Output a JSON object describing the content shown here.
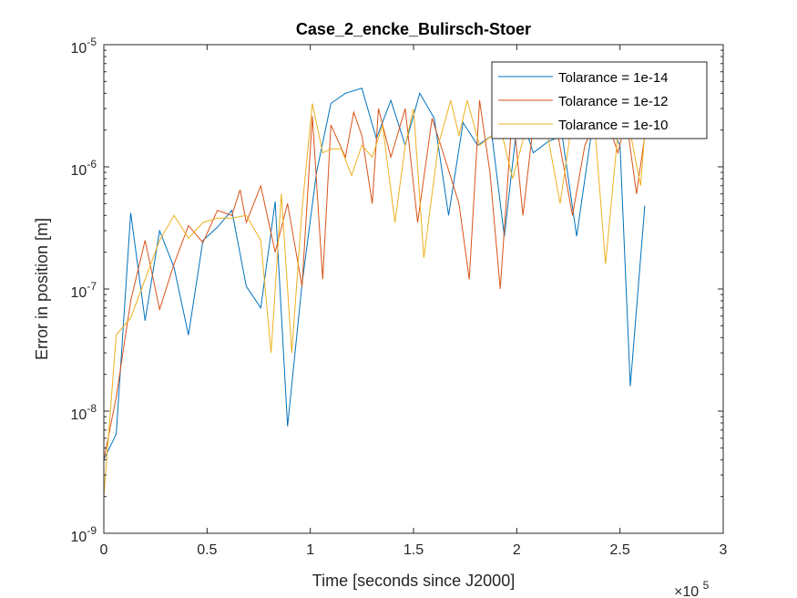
{
  "chart_data": {
    "type": "line",
    "title": "Case_2_encke_Bulirsch-Stoer",
    "xlabel": "Time [seconds since J2000]",
    "ylabel": "Error in position [m]",
    "x_multiplier_base": "×10",
    "x_multiplier_exp": "5",
    "xlim": [
      0,
      3
    ],
    "x_scale_factor": 100000,
    "ylim": [
      1e-09,
      1e-05
    ],
    "yscale": "log",
    "grid": false,
    "legend_position": "top-right",
    "x_ticks": [
      0,
      0.5,
      1,
      1.5,
      2,
      2.5,
      3
    ],
    "x_tick_labels": [
      "0",
      "0.5",
      "1",
      "1.5",
      "2",
      "2.5",
      "3"
    ],
    "y_ticks": [
      1e-09,
      1e-08,
      1e-07,
      1e-06,
      1e-05
    ],
    "y_tick_labels": [
      {
        "base": "10",
        "exp": "-9"
      },
      {
        "base": "10",
        "exp": "-8"
      },
      {
        "base": "10",
        "exp": "-7"
      },
      {
        "base": "10",
        "exp": "-6"
      },
      {
        "base": "10",
        "exp": "-5"
      }
    ],
    "series": [
      {
        "name": "Tolarance = 1e-14",
        "color": "#0072bd",
        "x": [
          0,
          0.06,
          0.13,
          0.2,
          0.27,
          0.34,
          0.41,
          0.48,
          0.55,
          0.62,
          0.69,
          0.76,
          0.83,
          0.89,
          0.96,
          1.03,
          1.1,
          1.17,
          1.25,
          1.32,
          1.39,
          1.46,
          1.53,
          1.6,
          1.67,
          1.74,
          1.81,
          1.88,
          1.94,
          2.01,
          2.08,
          2.15,
          2.22,
          2.29,
          2.36,
          2.43,
          2.5,
          2.55,
          2.62
        ],
        "y": [
          4e-09,
          6.5e-09,
          4.2e-07,
          5.5e-08,
          3e-07,
          1.5e-07,
          4.2e-08,
          2.5e-07,
          3.2e-07,
          4.4e-07,
          1.05e-07,
          7e-08,
          5.2e-07,
          7.5e-09,
          1.1e-07,
          9e-07,
          3.3e-06,
          4e-06,
          4.4e-06,
          1.7e-06,
          3.5e-06,
          1.5e-06,
          4e-06,
          2.5e-06,
          4e-07,
          2.3e-06,
          1.5e-06,
          1.8e-06,
          2.7e-07,
          3e-06,
          1.3e-06,
          1.6e-06,
          1.8e-06,
          2.7e-07,
          1.8e-06,
          2.5e-06,
          1.5e-06,
          1.6e-08,
          4.8e-07
        ]
      },
      {
        "name": "Tolarance = 1e-12",
        "color": "#d95319",
        "x": [
          0,
          0.06,
          0.13,
          0.2,
          0.27,
          0.34,
          0.41,
          0.48,
          0.55,
          0.62,
          0.66,
          0.69,
          0.76,
          0.83,
          0.89,
          0.96,
          1.01,
          1.06,
          1.1,
          1.17,
          1.21,
          1.25,
          1.3,
          1.33,
          1.39,
          1.46,
          1.52,
          1.59,
          1.65,
          1.72,
          1.77,
          1.82,
          1.87,
          1.92,
          1.98,
          2.03,
          2.08,
          2.13,
          2.2,
          2.27,
          2.33,
          2.39,
          2.45,
          2.49,
          2.53,
          2.58,
          2.62
        ],
        "y": [
          4e-09,
          1.3e-08,
          8e-08,
          2.5e-07,
          6.8e-08,
          1.6e-07,
          3.3e-07,
          2.4e-07,
          4.4e-07,
          4e-07,
          6.5e-07,
          3.5e-07,
          7e-07,
          2e-07,
          5e-07,
          1.05e-07,
          2.6e-06,
          1.2e-07,
          2.2e-06,
          1.2e-06,
          2.8e-06,
          1.8e-06,
          5e-07,
          3e-06,
          1.2e-06,
          3e-06,
          3.5e-07,
          2.5e-06,
          1.2e-06,
          5e-07,
          1.2e-07,
          3.5e-06,
          9e-07,
          1e-07,
          3e-06,
          4e-07,
          2.2e-06,
          1.7e-06,
          1.8e-06,
          4e-07,
          1.5e-06,
          2.5e-06,
          2.1e-06,
          1.3e-06,
          2.5e-06,
          6e-07,
          1.8e-06
        ]
      },
      {
        "name": "Tolarance = 1e-10",
        "color": "#edb120",
        "x": [
          0,
          0.06,
          0.13,
          0.2,
          0.27,
          0.34,
          0.41,
          0.48,
          0.55,
          0.62,
          0.69,
          0.76,
          0.81,
          0.86,
          0.91,
          0.96,
          1.01,
          1.06,
          1.1,
          1.15,
          1.2,
          1.25,
          1.3,
          1.35,
          1.41,
          1.46,
          1.5,
          1.55,
          1.62,
          1.68,
          1.72,
          1.76,
          1.82,
          1.88,
          1.93,
          1.98,
          2.04,
          2.1,
          2.15,
          2.21,
          2.26,
          2.32,
          2.38,
          2.43,
          2.49,
          2.55,
          2.6,
          2.62
        ],
        "y": [
          2e-09,
          4.2e-08,
          5.8e-08,
          1.2e-07,
          2.5e-07,
          4e-07,
          2.6e-07,
          3.5e-07,
          3.8e-07,
          3.8e-07,
          4e-07,
          2.5e-07,
          3e-08,
          6e-07,
          3e-08,
          4.5e-07,
          3.3e-06,
          1.3e-06,
          1.4e-06,
          1.4e-06,
          8.5e-07,
          1.5e-06,
          1.2e-06,
          2.2e-06,
          3.5e-07,
          1.5e-06,
          3e-06,
          1.8e-07,
          1.5e-06,
          3.5e-06,
          1.8e-06,
          3.5e-06,
          1.5e-06,
          1.8e-06,
          1.8e-06,
          8e-07,
          1.9e-06,
          1.9e-06,
          1.8e-06,
          5e-07,
          1.9e-06,
          1.9e-06,
          1.9e-06,
          1.6e-07,
          1.9e-06,
          1.9e-06,
          7e-07,
          1.9e-06
        ]
      }
    ]
  }
}
